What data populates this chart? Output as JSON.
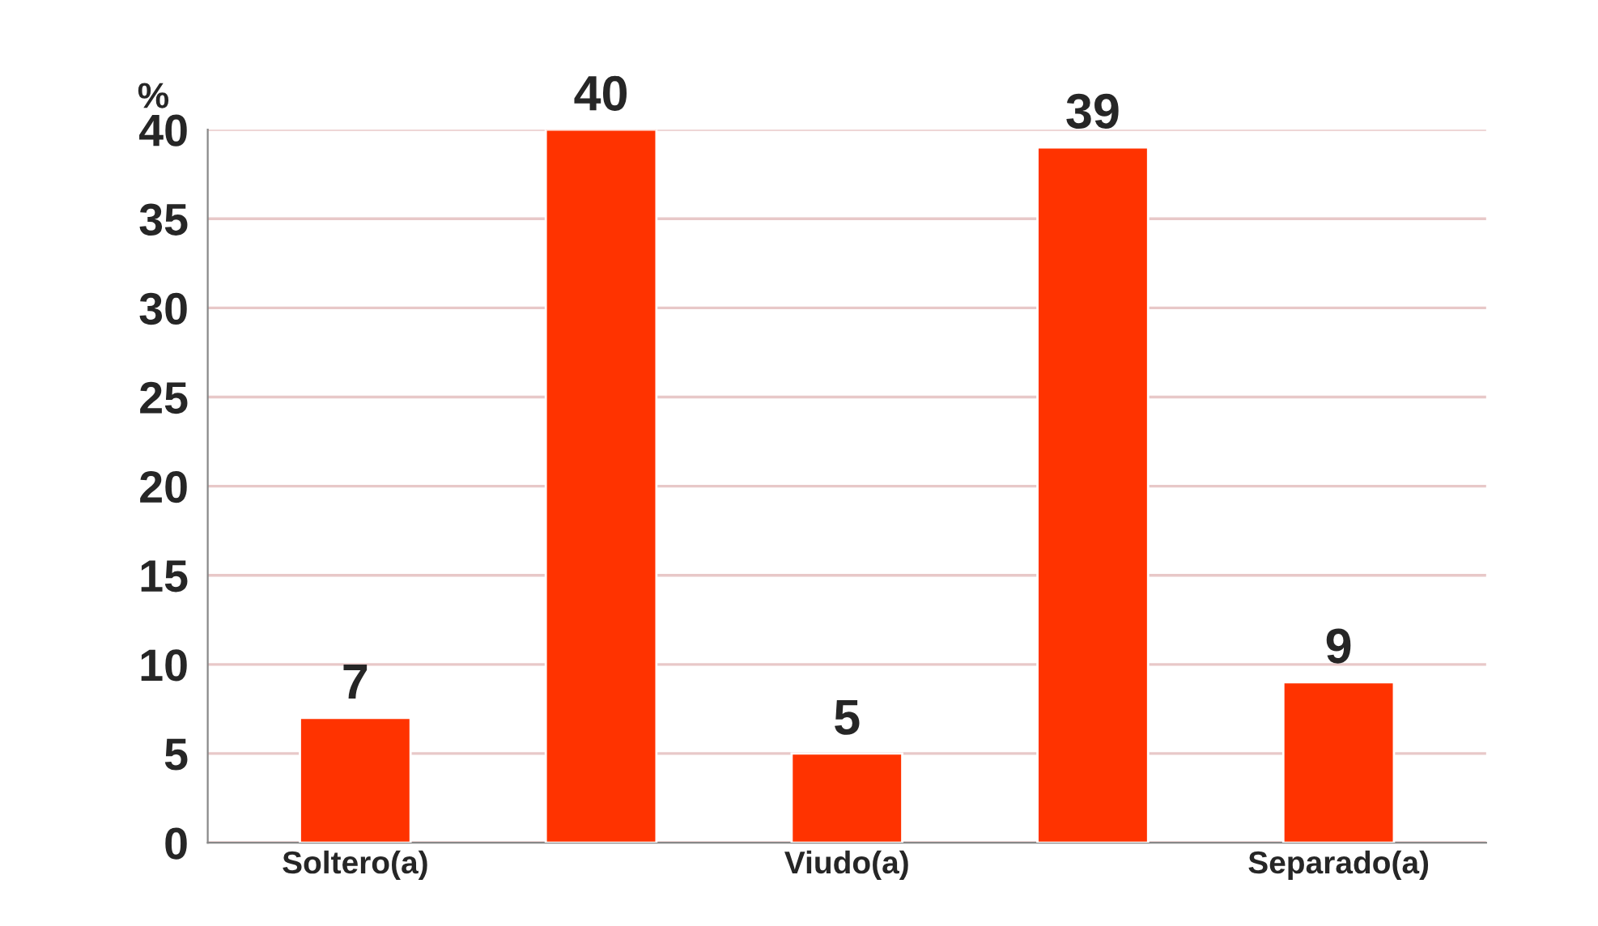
{
  "chart_data": {
    "type": "bar",
    "ylabel": "%",
    "categories": [
      "Soltero(a)",
      null,
      "Viudo(a)",
      null,
      "Separado(a)"
    ],
    "values": [
      7,
      40,
      5,
      39,
      9
    ],
    "color": "#ff3300",
    "ylim": [
      0,
      40
    ],
    "yticks": [
      0,
      5,
      10,
      15,
      20,
      25,
      30,
      35,
      40
    ],
    "grid": "y",
    "data_labels": true
  }
}
